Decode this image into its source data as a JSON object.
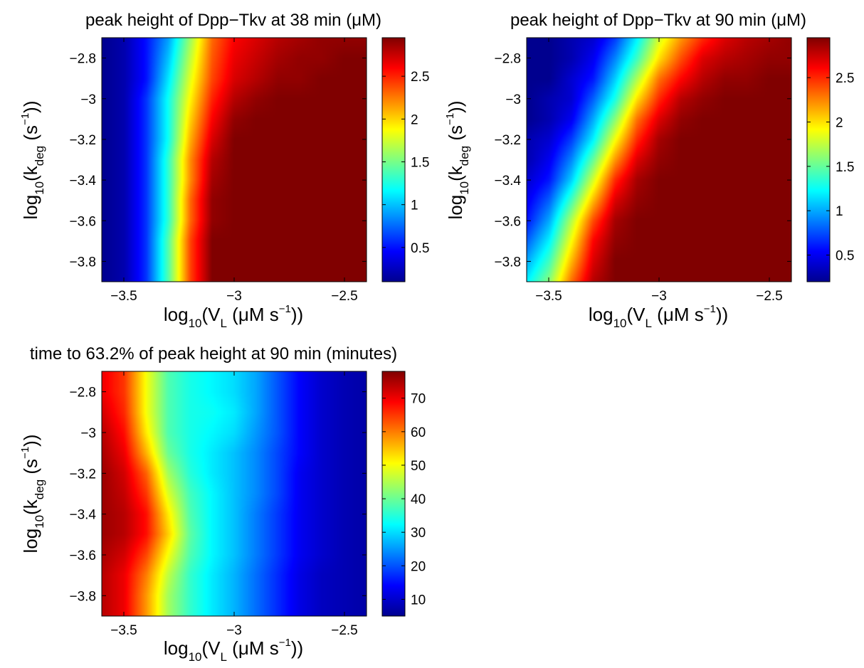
{
  "chart_data": [
    {
      "id": "p1",
      "type": "heatmap",
      "title": "peak height of Dpp−Tkv at 38 min (μM)",
      "xlabel": {
        "pre": "log",
        "sub": "10",
        "mid": "(V",
        "sub2": "L",
        "post": " (μM s",
        "sup": "−1",
        "end": "))"
      },
      "ylabel": {
        "pre": "log",
        "sub": "10",
        "mid": "(k",
        "sub2": "deg",
        "post": " (s",
        "sup": "−1",
        "end": "))"
      },
      "xlim": [
        -3.6,
        -2.4
      ],
      "ylim": [
        -3.9,
        -2.7
      ],
      "xticks": [
        -3.5,
        -3,
        -2.5
      ],
      "xtick_labels": [
        "−3.5",
        "−3",
        "−2.5"
      ],
      "yticks": [
        -2.8,
        -3,
        -3.2,
        -3.4,
        -3.6,
        -3.8
      ],
      "ytick_labels": [
        "−2.8",
        "−3",
        "−3.2",
        "−3.4",
        "−3.6",
        "−3.8"
      ],
      "clim": [
        0.1,
        2.95
      ],
      "colorbar_ticks": [
        0.5,
        1,
        1.5,
        2,
        2.5
      ],
      "colorbar_tick_labels": [
        "0.5",
        "1",
        "1.5",
        "2",
        "2.5"
      ],
      "y": [
        -2.7,
        -2.8,
        -2.9,
        -3.0,
        -3.1,
        -3.2,
        -3.3,
        -3.4,
        -3.5,
        -3.6,
        -3.7,
        -3.8,
        -3.9
      ],
      "x": [
        -3.6,
        -3.5,
        -3.4,
        -3.3,
        -3.2,
        -3.1,
        -3.0,
        -2.9,
        -2.8,
        -2.7,
        -2.6,
        -2.5,
        -2.4
      ],
      "z": [
        [
          0.1,
          0.2,
          0.5,
          0.9,
          1.6,
          2.3,
          2.6,
          2.7,
          2.8,
          2.85,
          2.9,
          2.9,
          2.9
        ],
        [
          0.1,
          0.2,
          0.5,
          1.0,
          1.7,
          2.35,
          2.65,
          2.75,
          2.85,
          2.9,
          2.9,
          2.95,
          2.95
        ],
        [
          0.1,
          0.2,
          0.5,
          1.1,
          1.8,
          2.4,
          2.7,
          2.8,
          2.9,
          2.9,
          2.95,
          2.95,
          2.95
        ],
        [
          0.1,
          0.2,
          0.6,
          1.2,
          1.9,
          2.5,
          2.8,
          2.9,
          2.95,
          2.95,
          2.95,
          2.95,
          2.95
        ],
        [
          0.1,
          0.2,
          0.6,
          1.2,
          2.0,
          2.6,
          2.9,
          2.95,
          2.95,
          2.95,
          2.95,
          2.95,
          2.95
        ],
        [
          0.1,
          0.2,
          0.6,
          1.2,
          2.1,
          2.7,
          2.95,
          2.95,
          2.95,
          2.95,
          2.95,
          2.95,
          2.95
        ],
        [
          0.1,
          0.2,
          0.6,
          1.3,
          2.2,
          2.8,
          2.95,
          2.95,
          2.95,
          2.95,
          2.95,
          2.95,
          2.95
        ],
        [
          0.1,
          0.2,
          0.6,
          1.3,
          2.2,
          2.85,
          2.95,
          2.95,
          2.95,
          2.95,
          2.95,
          2.95,
          2.95
        ],
        [
          0.1,
          0.2,
          0.6,
          1.3,
          2.3,
          2.9,
          2.95,
          2.95,
          2.95,
          2.95,
          2.95,
          2.95,
          2.95
        ],
        [
          0.1,
          0.2,
          0.6,
          1.3,
          2.3,
          2.9,
          2.95,
          2.95,
          2.95,
          2.95,
          2.95,
          2.95,
          2.95
        ],
        [
          0.1,
          0.2,
          0.6,
          1.4,
          2.4,
          2.95,
          2.95,
          2.95,
          2.95,
          2.95,
          2.95,
          2.95,
          2.95
        ],
        [
          0.1,
          0.2,
          0.6,
          1.4,
          2.4,
          2.95,
          2.95,
          2.95,
          2.95,
          2.95,
          2.95,
          2.95,
          2.95
        ],
        [
          0.1,
          0.2,
          0.6,
          1.4,
          2.4,
          2.95,
          2.95,
          2.95,
          2.95,
          2.95,
          2.95,
          2.95,
          2.95
        ]
      ]
    },
    {
      "id": "p2",
      "type": "heatmap",
      "title": "peak height of Dpp−Tkv at 90 min (μM)",
      "xlabel": {
        "pre": "log",
        "sub": "10",
        "mid": "(V",
        "sub2": "L",
        "post": " (μM s",
        "sup": "−1",
        "end": "))"
      },
      "ylabel": {
        "pre": "log",
        "sub": "10",
        "mid": "(k",
        "sub2": "deg",
        "post": " (s",
        "sup": "−1",
        "end": "))"
      },
      "xlim": [
        -3.6,
        -2.4
      ],
      "ylim": [
        -3.9,
        -2.7
      ],
      "xticks": [
        -3.5,
        -3,
        -2.5
      ],
      "xtick_labels": [
        "−3.5",
        "−3",
        "−2.5"
      ],
      "yticks": [
        -2.8,
        -3,
        -3.2,
        -3.4,
        -3.6,
        -3.8
      ],
      "ytick_labels": [
        "−2.8",
        "−3",
        "−3.2",
        "−3.4",
        "−3.6",
        "−3.8"
      ],
      "clim": [
        0.2,
        2.95
      ],
      "colorbar_ticks": [
        0.5,
        1,
        1.5,
        2,
        2.5
      ],
      "colorbar_tick_labels": [
        "0.5",
        "1",
        "1.5",
        "2",
        "2.5"
      ],
      "y": [
        -2.7,
        -2.8,
        -2.9,
        -3.0,
        -3.1,
        -3.2,
        -3.3,
        -3.4,
        -3.5,
        -3.6,
        -3.7,
        -3.8,
        -3.9
      ],
      "x": [
        -3.6,
        -3.5,
        -3.4,
        -3.3,
        -3.2,
        -3.1,
        -3.0,
        -2.9,
        -2.8,
        -2.7,
        -2.6,
        -2.5,
        -2.4
      ],
      "z": [
        [
          0.2,
          0.2,
          0.3,
          0.4,
          0.7,
          1.2,
          1.8,
          2.2,
          2.5,
          2.7,
          2.8,
          2.85,
          2.9
        ],
        [
          0.2,
          0.2,
          0.3,
          0.5,
          0.9,
          1.4,
          2.0,
          2.4,
          2.7,
          2.8,
          2.85,
          2.9,
          2.9
        ],
        [
          0.2,
          0.2,
          0.4,
          0.6,
          1.1,
          1.7,
          2.3,
          2.6,
          2.8,
          2.9,
          2.9,
          2.95,
          2.95
        ],
        [
          0.2,
          0.3,
          0.4,
          0.8,
          1.3,
          2.0,
          2.5,
          2.8,
          2.9,
          2.95,
          2.95,
          2.95,
          2.95
        ],
        [
          0.2,
          0.3,
          0.5,
          1.0,
          1.6,
          2.3,
          2.7,
          2.9,
          2.95,
          2.95,
          2.95,
          2.95,
          2.95
        ],
        [
          0.3,
          0.4,
          0.7,
          1.2,
          1.9,
          2.5,
          2.85,
          2.95,
          2.95,
          2.95,
          2.95,
          2.95,
          2.95
        ],
        [
          0.3,
          0.5,
          0.9,
          1.5,
          2.2,
          2.7,
          2.9,
          2.95,
          2.95,
          2.95,
          2.95,
          2.95,
          2.95
        ],
        [
          0.4,
          0.6,
          1.1,
          1.8,
          2.5,
          2.85,
          2.95,
          2.95,
          2.95,
          2.95,
          2.95,
          2.95,
          2.95
        ],
        [
          0.5,
          0.8,
          1.4,
          2.1,
          2.7,
          2.9,
          2.95,
          2.95,
          2.95,
          2.95,
          2.95,
          2.95,
          2.95
        ],
        [
          0.6,
          1.0,
          1.7,
          2.4,
          2.85,
          2.95,
          2.95,
          2.95,
          2.95,
          2.95,
          2.95,
          2.95,
          2.95
        ],
        [
          0.8,
          1.2,
          1.9,
          2.6,
          2.9,
          2.95,
          2.95,
          2.95,
          2.95,
          2.95,
          2.95,
          2.95,
          2.95
        ],
        [
          1.0,
          1.4,
          2.1,
          2.7,
          2.95,
          2.95,
          2.95,
          2.95,
          2.95,
          2.95,
          2.95,
          2.95,
          2.95
        ],
        [
          1.2,
          1.6,
          2.3,
          2.8,
          2.95,
          2.95,
          2.95,
          2.95,
          2.95,
          2.95,
          2.95,
          2.95,
          2.95
        ]
      ]
    },
    {
      "id": "p3",
      "type": "heatmap",
      "title": "time to 63.2% of peak height at 90 min (minutes)",
      "xlabel": {
        "pre": "log",
        "sub": "10",
        "mid": "(V",
        "sub2": "L",
        "post": " (μM s",
        "sup": "−1",
        "end": "))"
      },
      "ylabel": {
        "pre": "log",
        "sub": "10",
        "mid": "(k",
        "sub2": "deg",
        "post": " (s",
        "sup": "−1",
        "end": "))"
      },
      "xlim": [
        -3.6,
        -2.4
      ],
      "ylim": [
        -3.9,
        -2.7
      ],
      "xticks": [
        -3.5,
        -3,
        -2.5
      ],
      "xtick_labels": [
        "−3.5",
        "−3",
        "−2.5"
      ],
      "yticks": [
        -2.8,
        -3,
        -3.2,
        -3.4,
        -3.6,
        -3.8
      ],
      "ytick_labels": [
        "−2.8",
        "−3",
        "−3.2",
        "−3.4",
        "−3.6",
        "−3.8"
      ],
      "clim": [
        5,
        78
      ],
      "colorbar_ticks": [
        10,
        20,
        30,
        40,
        50,
        60,
        70
      ],
      "colorbar_tick_labels": [
        "10",
        "20",
        "30",
        "40",
        "50",
        "60",
        "70"
      ],
      "y": [
        -2.7,
        -2.8,
        -2.9,
        -3.0,
        -3.1,
        -3.2,
        -3.3,
        -3.4,
        -3.5,
        -3.6,
        -3.7,
        -3.8,
        -3.9
      ],
      "x": [
        -3.6,
        -3.5,
        -3.4,
        -3.3,
        -3.2,
        -3.1,
        -3.0,
        -2.9,
        -2.8,
        -2.7,
        -2.6,
        -2.5,
        -2.4
      ],
      "z": [
        [
          70,
          65,
          50,
          38,
          34,
          32,
          30,
          26,
          20,
          14,
          10,
          8,
          7
        ],
        [
          70,
          65,
          50,
          38,
          34,
          32,
          30,
          26,
          20,
          14,
          10,
          8,
          7
        ],
        [
          72,
          66,
          50,
          38,
          34,
          33,
          31,
          26,
          20,
          14,
          10,
          8,
          7
        ],
        [
          74,
          68,
          52,
          38,
          34,
          32,
          30,
          25,
          20,
          14,
          10,
          8,
          7
        ],
        [
          75,
          70,
          56,
          40,
          34,
          31,
          28,
          24,
          19,
          14,
          10,
          8,
          7
        ],
        [
          76,
          72,
          62,
          44,
          35,
          31,
          28,
          24,
          19,
          13,
          10,
          8,
          7
        ],
        [
          76,
          73,
          65,
          48,
          37,
          32,
          28,
          24,
          19,
          13,
          10,
          8,
          7
        ],
        [
          76,
          74,
          68,
          52,
          38,
          32,
          28,
          23,
          18,
          13,
          10,
          8,
          7
        ],
        [
          76,
          74,
          68,
          54,
          39,
          32,
          28,
          23,
          18,
          13,
          10,
          8,
          7
        ],
        [
          75,
          72,
          64,
          50,
          38,
          32,
          28,
          23,
          18,
          13,
          10,
          8,
          7
        ],
        [
          74,
          70,
          60,
          46,
          36,
          31,
          27,
          22,
          17,
          12,
          9,
          8,
          7
        ],
        [
          74,
          70,
          58,
          44,
          36,
          31,
          27,
          22,
          17,
          12,
          9,
          8,
          7
        ],
        [
          74,
          70,
          58,
          44,
          36,
          31,
          27,
          22,
          17,
          12,
          9,
          8,
          7
        ]
      ]
    }
  ]
}
